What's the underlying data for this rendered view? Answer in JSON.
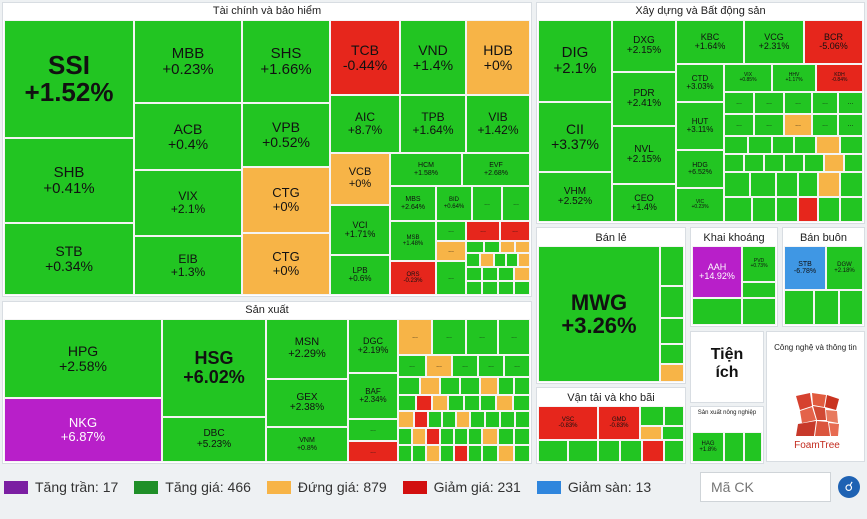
{
  "sectors": {
    "finance": "Tài chính và bảo hiểm",
    "construction": "Xây dựng và Bất động sản",
    "manufacturing": "Sản xuất",
    "retail": "Bán lẻ",
    "mining": "Khai khoáng",
    "wholesale": "Bán buôn",
    "transport": "Vận tải và kho bãi",
    "utilities": "Tiện ích",
    "tech": "Công nghệ và thông tin",
    "agriculture": "Sản xuất nông nghiệp"
  },
  "tiles": {
    "ssi": {
      "sym": "SSI",
      "pct": "+1.52%"
    },
    "mbb": {
      "sym": "MBB",
      "pct": "+0.23%"
    },
    "shs": {
      "sym": "SHS",
      "pct": "+1.66%"
    },
    "tcb": {
      "sym": "TCB",
      "pct": "-0.44%"
    },
    "vnd": {
      "sym": "VND",
      "pct": "+1.4%"
    },
    "hdb": {
      "sym": "HDB",
      "pct": "+0%"
    },
    "acb": {
      "sym": "ACB",
      "pct": "+0.4%"
    },
    "vpb": {
      "sym": "VPB",
      "pct": "+0.52%"
    },
    "aic": {
      "sym": "AIC",
      "pct": "+8.7%"
    },
    "tpb": {
      "sym": "TPB",
      "pct": "+1.64%"
    },
    "vib": {
      "sym": "VIB",
      "pct": "+1.42%"
    },
    "shb": {
      "sym": "SHB",
      "pct": "+0.41%"
    },
    "vix": {
      "sym": "VIX",
      "pct": "+2.1%"
    },
    "ctg1": {
      "sym": "CTG",
      "pct": "+0%"
    },
    "vcb": {
      "sym": "VCB",
      "pct": "+0%"
    },
    "hcm": {
      "sym": "HCM",
      "pct": "+1.58%"
    },
    "evf": {
      "sym": "EVF",
      "pct": "+2.68%"
    },
    "stb": {
      "sym": "STB",
      "pct": "+0.34%"
    },
    "eib": {
      "sym": "EIB",
      "pct": "+1.3%"
    },
    "ctg2": {
      "sym": "CTG",
      "pct": "+0%"
    },
    "vci": {
      "sym": "VCI",
      "pct": "+1.71%"
    },
    "mbs": {
      "sym": "MBS",
      "pct": "+2.64%"
    },
    "bid": {
      "sym": "BID",
      "pct": "+0.64%"
    },
    "lpb": {
      "sym": "LPB",
      "pct": "+0.6%"
    },
    "msb": {
      "sym": "MSB",
      "pct": "+1.48%"
    },
    "ors": {
      "sym": "ORS",
      "pct": "-0.23%"
    },
    "dig": {
      "sym": "DIG",
      "pct": "+2.1%"
    },
    "dxg": {
      "sym": "DXG",
      "pct": "+2.15%"
    },
    "kbc": {
      "sym": "KBC",
      "pct": "+1.64%"
    },
    "vcg": {
      "sym": "VCG",
      "pct": "+2.31%"
    },
    "bcr": {
      "sym": "BCR",
      "pct": "-5.06%"
    },
    "pdr": {
      "sym": "PDR",
      "pct": "+2.41%"
    },
    "ctd": {
      "sym": "CTD",
      "pct": "+3.03%"
    },
    "vix2": {
      "sym": "VIX",
      "pct": "+0.85%"
    },
    "hhv": {
      "sym": "HHV",
      "pct": "+1.17%"
    },
    "kdh": {
      "sym": "KDH",
      "pct": "-0.84%"
    },
    "cii": {
      "sym": "CII",
      "pct": "+3.37%"
    },
    "hut": {
      "sym": "HUT",
      "pct": "+3.11%"
    },
    "nvl": {
      "sym": "NVL",
      "pct": "+2.15%"
    },
    "hdg": {
      "sym": "HDG",
      "pct": "+6.52%"
    },
    "vhm": {
      "sym": "VHM",
      "pct": "+2.52%"
    },
    "ceo": {
      "sym": "CEO",
      "pct": "+1.4%"
    },
    "vic": {
      "sym": "VIC",
      "pct": "+0.23%"
    },
    "hpg": {
      "sym": "HPG",
      "pct": "+2.58%"
    },
    "hsg": {
      "sym": "HSG",
      "pct": "+6.02%"
    },
    "msn": {
      "sym": "MSN",
      "pct": "+2.29%"
    },
    "dgc": {
      "sym": "DGC",
      "pct": "+2.19%"
    },
    "gex": {
      "sym": "GEX",
      "pct": "+2.38%"
    },
    "baf": {
      "sym": "BAF",
      "pct": "+2.34%"
    },
    "nkg": {
      "sym": "NKG",
      "pct": "+6.87%"
    },
    "dbc": {
      "sym": "DBC",
      "pct": "+5.23%"
    },
    "vnm": {
      "sym": "VNM",
      "pct": "+0.8%"
    },
    "mwg": {
      "sym": "MWG",
      "pct": "+3.26%"
    },
    "aah": {
      "sym": "AAH",
      "pct": "+14.92%"
    },
    "pvd": {
      "sym": "PVD",
      "pct": "+0.73%"
    },
    "stb2": {
      "sym": "STB",
      "pct": "-6.78%"
    },
    "dgw": {
      "sym": "DGW",
      "pct": "+2.18%"
    },
    "vsc": {
      "sym": "VSC",
      "pct": "-0.83%"
    },
    "gmd": {
      "sym": "GMD",
      "pct": "-0.83%"
    },
    "hag": {
      "sym": "HAG",
      "pct": "+1.8%"
    }
  },
  "ellipsis": "...",
  "legend": [
    {
      "label": "Tăng trần: 17",
      "color": "#7b1fa2"
    },
    {
      "label": "Tăng giá: 466",
      "color": "#1f8f28"
    },
    {
      "label": "Đứng giá: 879",
      "color": "#f7b447"
    },
    {
      "label": "Giảm giá: 231",
      "color": "#d20f0f"
    },
    {
      "label": "Giảm sàn: 13",
      "color": "#2f86dd"
    }
  ],
  "search": {
    "placeholder": "Mã CK"
  },
  "foamtree_label": "FoamTree"
}
